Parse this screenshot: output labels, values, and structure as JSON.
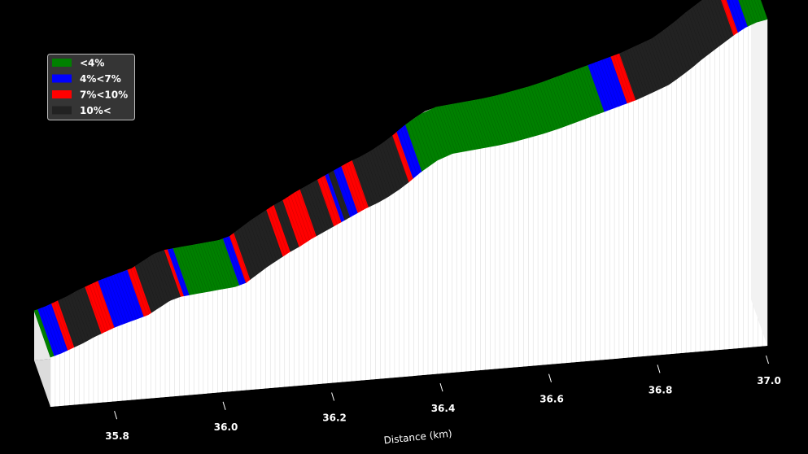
{
  "chart_data": {
    "type": "area",
    "projection": "3d",
    "xlabel": "Distance (km)",
    "xlim": [
      35.68,
      37.0
    ],
    "xticks": [
      "35.8",
      "36.0",
      "36.2",
      "36.4",
      "36.6",
      "36.8",
      "37.0"
    ],
    "x_tick_values": [
      35.8,
      36.0,
      36.2,
      36.4,
      36.6,
      36.8,
      37.0
    ],
    "legend": {
      "placement": "top-left",
      "entries": [
        {
          "label": "<4%",
          "color": "#008000"
        },
        {
          "label": "4%<7%",
          "color": "#0000ff"
        },
        {
          "label": "7%<10%",
          "color": "#ff0000"
        },
        {
          "label": "10%<",
          "color": "#222222"
        }
      ]
    },
    "profile": {
      "x": [
        35.68,
        35.7,
        35.72,
        35.74,
        35.76,
        35.78,
        35.8,
        35.82,
        35.84,
        35.86,
        35.88,
        35.9,
        35.92,
        35.94,
        35.96,
        35.98,
        36.0,
        36.02,
        36.04,
        36.06,
        36.08,
        36.1,
        36.12,
        36.14,
        36.16,
        36.18,
        36.2,
        36.22,
        36.24,
        36.26,
        36.28,
        36.3,
        36.32,
        36.34,
        36.36,
        36.38,
        36.4,
        36.42,
        36.44,
        36.46,
        36.48,
        36.5,
        36.52,
        36.54,
        36.56,
        36.58,
        36.6,
        36.62,
        36.64,
        36.66,
        36.68,
        36.7,
        36.72,
        36.74,
        36.76,
        36.78,
        36.8,
        36.82,
        36.84,
        36.86,
        36.88,
        36.9,
        36.92,
        36.94,
        36.96,
        36.98,
        37.0
      ],
      "y": [
        0,
        3,
        7,
        11,
        16,
        20,
        24,
        27,
        30,
        33,
        39,
        45,
        48,
        49,
        50,
        51,
        52,
        53,
        56,
        63,
        70,
        76,
        82,
        87,
        93,
        98,
        103,
        108,
        113,
        118,
        122,
        127,
        133,
        140,
        148,
        155,
        161,
        164,
        165,
        166,
        167,
        168,
        169,
        171,
        173,
        175,
        177,
        180,
        183,
        186,
        189,
        192,
        195,
        198,
        201,
        205,
        209,
        213,
        220,
        227,
        235,
        242,
        249,
        256,
        262,
        266,
        268
      ]
    },
    "segments": [
      {
        "from": 35.68,
        "to": 35.687,
        "category": "<4%"
      },
      {
        "from": 35.687,
        "to": 35.712,
        "category": "4%<7%"
      },
      {
        "from": 35.712,
        "to": 35.724,
        "category": "7%<10%"
      },
      {
        "from": 35.724,
        "to": 35.774,
        "category": "10%<"
      },
      {
        "from": 35.774,
        "to": 35.798,
        "category": "7%<10%"
      },
      {
        "from": 35.798,
        "to": 35.852,
        "category": "4%<7%"
      },
      {
        "from": 35.852,
        "to": 35.866,
        "category": "7%<10%"
      },
      {
        "from": 35.866,
        "to": 35.92,
        "category": "10%<"
      },
      {
        "from": 35.92,
        "to": 35.926,
        "category": "7%<10%"
      },
      {
        "from": 35.926,
        "to": 35.936,
        "category": "4%<7%"
      },
      {
        "from": 35.936,
        "to": 36.028,
        "category": "<4%"
      },
      {
        "from": 36.028,
        "to": 36.04,
        "category": "4%<7%"
      },
      {
        "from": 36.04,
        "to": 36.048,
        "category": "7%<10%"
      },
      {
        "from": 36.048,
        "to": 36.108,
        "category": "10%<"
      },
      {
        "from": 36.108,
        "to": 36.122,
        "category": "7%<10%"
      },
      {
        "from": 36.122,
        "to": 36.138,
        "category": "10%<"
      },
      {
        "from": 36.138,
        "to": 36.17,
        "category": "7%<10%"
      },
      {
        "from": 36.17,
        "to": 36.202,
        "category": "10%<"
      },
      {
        "from": 36.202,
        "to": 36.216,
        "category": "7%<10%"
      },
      {
        "from": 36.216,
        "to": 36.222,
        "category": "4%<7%"
      },
      {
        "from": 36.222,
        "to": 36.232,
        "category": "10%<"
      },
      {
        "from": 36.232,
        "to": 36.246,
        "category": "4%<7%"
      },
      {
        "from": 36.246,
        "to": 36.266,
        "category": "7%<10%"
      },
      {
        "from": 36.266,
        "to": 36.34,
        "category": "10%<"
      },
      {
        "from": 36.34,
        "to": 36.348,
        "category": "7%<10%"
      },
      {
        "from": 36.348,
        "to": 36.364,
        "category": "4%<7%"
      },
      {
        "from": 36.364,
        "to": 36.7,
        "category": "<4%"
      },
      {
        "from": 36.7,
        "to": 36.742,
        "category": "4%<7%"
      },
      {
        "from": 36.742,
        "to": 36.758,
        "category": "7%<10%"
      },
      {
        "from": 36.758,
        "to": 36.938,
        "category": "10%<"
      },
      {
        "from": 36.938,
        "to": 36.946,
        "category": "7%<10%"
      },
      {
        "from": 36.946,
        "to": 36.964,
        "category": "4%<7%"
      },
      {
        "from": 36.964,
        "to": 37.0,
        "category": "<4%"
      }
    ]
  }
}
